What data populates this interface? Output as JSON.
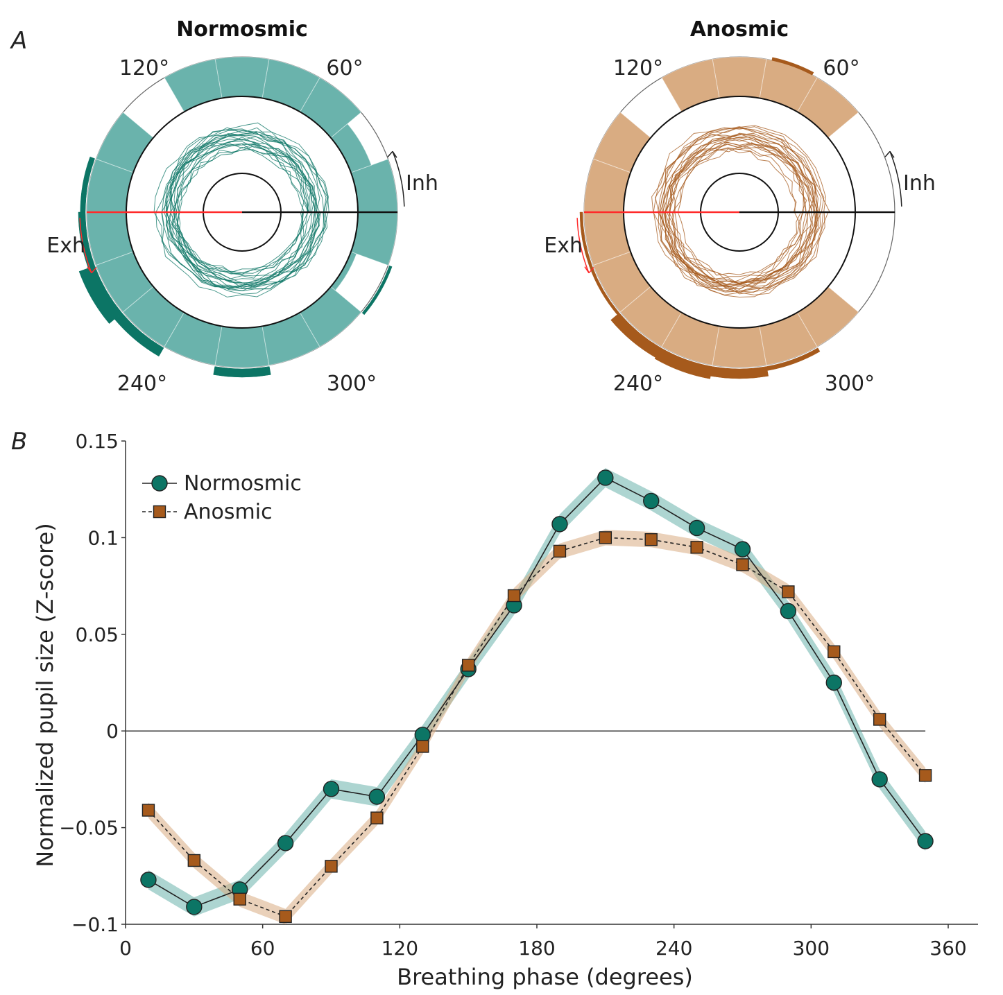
{
  "panels": {
    "a_label": "A",
    "b_label": "B"
  },
  "colors": {
    "normosmic": "#0c7565",
    "normosmic_light": "#6ab3ac",
    "anosmic": "#a65a1c",
    "anosmic_light": "#d9ac82",
    "exh_line": "#ff2a2a",
    "axis": "#333333"
  },
  "polar": [
    {
      "title": "Normosmic",
      "scheme": "normosmic",
      "degree_labels": [
        "120°",
        "60°",
        "240°",
        "300°"
      ],
      "inh_label": "Inh",
      "exh_label": "Exh",
      "bins": [
        {
          "deg": 10,
          "level": 1.0,
          "sig": 0
        },
        {
          "deg": 30,
          "level": 0.55,
          "sig": 0
        },
        {
          "deg": 50,
          "level": 1.0,
          "sig": 0
        },
        {
          "deg": 70,
          "level": 1.0,
          "sig": 0
        },
        {
          "deg": 90,
          "level": 1.0,
          "sig": 0
        },
        {
          "deg": 110,
          "level": 1.0,
          "sig": 0
        },
        {
          "deg": 130,
          "level": 0.0,
          "sig": 0
        },
        {
          "deg": 150,
          "level": 1.0,
          "sig": 0
        },
        {
          "deg": 170,
          "level": 1.0,
          "sig": 0.18
        },
        {
          "deg": 190,
          "level": 1.0,
          "sig": 0.25
        },
        {
          "deg": 210,
          "level": 1.0,
          "sig": 0.6
        },
        {
          "deg": 230,
          "level": 1.0,
          "sig": 0.35
        },
        {
          "deg": 250,
          "level": 1.0,
          "sig": 0
        },
        {
          "deg": 270,
          "level": 1.0,
          "sig": 0.3
        },
        {
          "deg": 290,
          "level": 1.0,
          "sig": 0
        },
        {
          "deg": 310,
          "level": 1.0,
          "sig": 0
        },
        {
          "deg": 330,
          "level": 0.15,
          "sig": 0.1
        },
        {
          "deg": 350,
          "level": 1.0,
          "sig": 0
        }
      ]
    },
    {
      "title": "Anosmic",
      "scheme": "anosmic",
      "degree_labels": [
        "120°",
        "60°",
        "240°",
        "300°"
      ],
      "inh_label": "Inh",
      "exh_label": "Exh",
      "bins": [
        {
          "deg": 10,
          "level": 0.0,
          "sig": 0
        },
        {
          "deg": 30,
          "level": 0.0,
          "sig": 0
        },
        {
          "deg": 50,
          "level": 1.0,
          "sig": 0
        },
        {
          "deg": 70,
          "level": 1.0,
          "sig": 0
        },
        {
          "deg": 90,
          "level": 1.0,
          "sig": 0
        },
        {
          "deg": 110,
          "level": 1.0,
          "sig": 0
        },
        {
          "deg": 130,
          "level": 0.0,
          "sig": 0
        },
        {
          "deg": 150,
          "level": 1.0,
          "sig": 0
        },
        {
          "deg": 170,
          "level": 1.0,
          "sig": 0
        },
        {
          "deg": 190,
          "level": 1.0,
          "sig": 0.1
        },
        {
          "deg": 210,
          "level": 1.0,
          "sig": 0.1
        },
        {
          "deg": 230,
          "level": 1.0,
          "sig": 0.4
        },
        {
          "deg": 250,
          "level": 1.0,
          "sig": 0.45
        },
        {
          "deg": 270,
          "level": 1.0,
          "sig": 0.35
        },
        {
          "deg": 290,
          "level": 1.0,
          "sig": 0.15
        },
        {
          "deg": 310,
          "level": 1.0,
          "sig": 0
        },
        {
          "deg": 330,
          "level": 0.0,
          "sig": 0
        },
        {
          "deg": 350,
          "level": 0.0,
          "sig": 0
        }
      ],
      "extra_arc": {
        "from": 62,
        "to": 78
      }
    }
  ],
  "chart_data": {
    "type": "line",
    "xlabel": "Breathing phase (degrees)",
    "ylabel": "Normalized pupil size (Z-score)",
    "xlim": [
      0,
      360
    ],
    "ylim": [
      -0.1,
      0.15
    ],
    "xticks": [
      0,
      60,
      120,
      180,
      240,
      300,
      360
    ],
    "xtick_labels": [
      "0",
      "60",
      "120",
      "180",
      "240",
      "300",
      "360"
    ],
    "yticks": [
      0.15,
      0.1,
      0.05,
      0,
      -0.05,
      -0.1
    ],
    "ytick_labels": [
      "0.15",
      "0.1",
      "0.05",
      "0",
      "−0.05",
      "−0.1"
    ],
    "zero_line": true,
    "x": [
      10,
      30,
      50,
      70,
      90,
      110,
      130,
      150,
      170,
      190,
      210,
      230,
      250,
      270,
      290,
      310,
      330,
      350
    ],
    "series": [
      {
        "name": "Normosmic",
        "marker": "circle",
        "linestyle": "solid",
        "values": [
          -0.077,
          -0.091,
          -0.082,
          -0.058,
          -0.03,
          -0.034,
          -0.002,
          0.032,
          0.065,
          0.107,
          0.131,
          0.119,
          0.105,
          0.094,
          0.062,
          0.025,
          -0.025,
          -0.057
        ],
        "band": 0.005
      },
      {
        "name": "Anosmic",
        "marker": "square",
        "linestyle": "dashed",
        "values": [
          -0.041,
          -0.067,
          -0.087,
          -0.096,
          -0.07,
          -0.045,
          -0.008,
          0.034,
          0.07,
          0.093,
          0.1,
          0.099,
          0.095,
          0.086,
          0.072,
          0.041,
          0.006,
          -0.023
        ],
        "band": 0.004
      }
    ]
  }
}
